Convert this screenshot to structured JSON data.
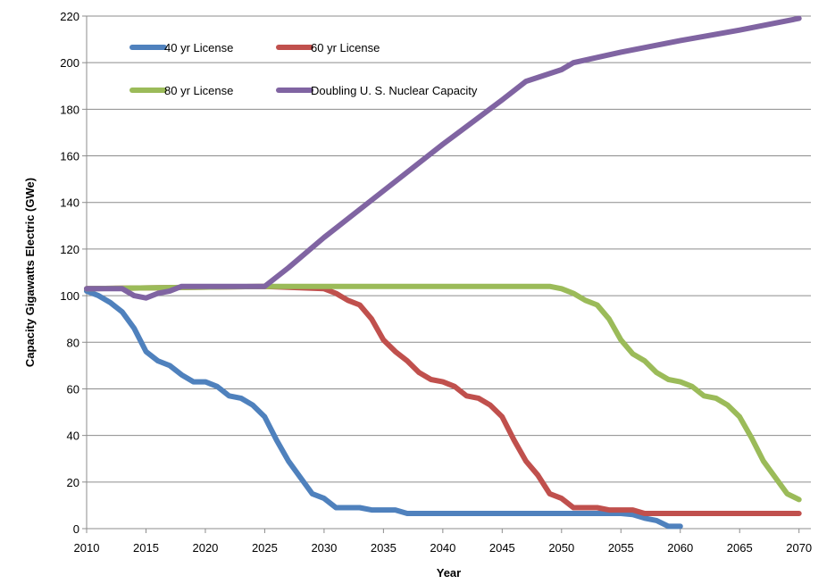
{
  "chart_data": {
    "type": "line",
    "xlabel": "Year",
    "ylabel": "Capacity Gigawatts Electric (GWe)",
    "xlim": [
      2010,
      2071
    ],
    "ylim": [
      0,
      220
    ],
    "x_ticks": [
      2010,
      2015,
      2020,
      2025,
      2030,
      2035,
      2040,
      2045,
      2050,
      2055,
      2060,
      2065,
      2070
    ],
    "y_ticks": [
      0,
      20,
      40,
      60,
      80,
      100,
      120,
      140,
      160,
      180,
      200,
      220
    ],
    "grid": true,
    "legend_position": "top-left",
    "series": [
      {
        "name": "40 yr License",
        "color": "#4f81bd",
        "points": [
          [
            2010,
            102
          ],
          [
            2011,
            100
          ],
          [
            2012,
            97
          ],
          [
            2013,
            93
          ],
          [
            2014,
            86
          ],
          [
            2015,
            76
          ],
          [
            2016,
            72
          ],
          [
            2017,
            70
          ],
          [
            2018,
            66
          ],
          [
            2019,
            63
          ],
          [
            2020,
            63
          ],
          [
            2021,
            61
          ],
          [
            2022,
            57
          ],
          [
            2023,
            56
          ],
          [
            2024,
            53
          ],
          [
            2025,
            48
          ],
          [
            2026,
            38
          ],
          [
            2027,
            29
          ],
          [
            2028,
            22
          ],
          [
            2029,
            15
          ],
          [
            2030,
            13
          ],
          [
            2031,
            9
          ],
          [
            2032,
            9
          ],
          [
            2033,
            9
          ],
          [
            2034,
            8
          ],
          [
            2035,
            8
          ],
          [
            2036,
            8
          ],
          [
            2037,
            6.5
          ],
          [
            2040,
            6.5
          ],
          [
            2045,
            6.5
          ],
          [
            2050,
            6.5
          ],
          [
            2055,
            6.5
          ],
          [
            2056,
            6
          ],
          [
            2057,
            4.5
          ],
          [
            2058,
            3.5
          ],
          [
            2059,
            1
          ],
          [
            2060,
            1
          ]
        ]
      },
      {
        "name": "60 yr License",
        "color": "#c0504d",
        "points": [
          [
            2010,
            103
          ],
          [
            2025,
            104
          ],
          [
            2030,
            103
          ],
          [
            2031,
            101
          ],
          [
            2032,
            98
          ],
          [
            2033,
            96
          ],
          [
            2034,
            90
          ],
          [
            2035,
            81
          ],
          [
            2036,
            76
          ],
          [
            2037,
            72
          ],
          [
            2038,
            67
          ],
          [
            2039,
            64
          ],
          [
            2040,
            63
          ],
          [
            2041,
            61
          ],
          [
            2042,
            57
          ],
          [
            2043,
            56
          ],
          [
            2044,
            53
          ],
          [
            2045,
            48
          ],
          [
            2046,
            38
          ],
          [
            2047,
            29
          ],
          [
            2048,
            23
          ],
          [
            2049,
            15
          ],
          [
            2050,
            13
          ],
          [
            2051,
            9
          ],
          [
            2052,
            9
          ],
          [
            2053,
            9
          ],
          [
            2054,
            8
          ],
          [
            2055,
            8
          ],
          [
            2056,
            8
          ],
          [
            2057,
            6.5
          ],
          [
            2060,
            6.5
          ],
          [
            2065,
            6.5
          ],
          [
            2070,
            6.5
          ]
        ]
      },
      {
        "name": "80 yr License",
        "color": "#9bbb59",
        "points": [
          [
            2010,
            103
          ],
          [
            2025,
            104
          ],
          [
            2030,
            104
          ],
          [
            2035,
            104
          ],
          [
            2040,
            104
          ],
          [
            2045,
            104
          ],
          [
            2049,
            104
          ],
          [
            2050,
            103
          ],
          [
            2051,
            101
          ],
          [
            2052,
            98
          ],
          [
            2053,
            96
          ],
          [
            2054,
            90
          ],
          [
            2055,
            81
          ],
          [
            2056,
            75
          ],
          [
            2057,
            72
          ],
          [
            2058,
            67
          ],
          [
            2059,
            64
          ],
          [
            2060,
            63
          ],
          [
            2061,
            61
          ],
          [
            2062,
            57
          ],
          [
            2063,
            56
          ],
          [
            2064,
            53
          ],
          [
            2065,
            48
          ],
          [
            2066,
            39
          ],
          [
            2067,
            29
          ],
          [
            2068,
            22
          ],
          [
            2069,
            15
          ],
          [
            2070,
            12.5
          ]
        ]
      },
      {
        "name": "Doubling U. S. Nuclear Capacity",
        "color": "#8064a2",
        "points": [
          [
            2010,
            103
          ],
          [
            2011,
            103
          ],
          [
            2012,
            103
          ],
          [
            2013,
            103
          ],
          [
            2014,
            100
          ],
          [
            2015,
            99
          ],
          [
            2016,
            101
          ],
          [
            2017,
            102
          ],
          [
            2018,
            104
          ],
          [
            2019,
            104
          ],
          [
            2020,
            104
          ],
          [
            2021,
            104
          ],
          [
            2022,
            104
          ],
          [
            2023,
            104
          ],
          [
            2024,
            104
          ],
          [
            2025,
            104
          ],
          [
            2027,
            112
          ],
          [
            2030,
            125
          ],
          [
            2035,
            145
          ],
          [
            2040,
            165
          ],
          [
            2045,
            184
          ],
          [
            2047,
            192
          ],
          [
            2050,
            197
          ],
          [
            2051,
            200
          ],
          [
            2055,
            204.5
          ],
          [
            2060,
            209.5
          ],
          [
            2065,
            214
          ],
          [
            2070,
            219
          ]
        ]
      }
    ]
  }
}
